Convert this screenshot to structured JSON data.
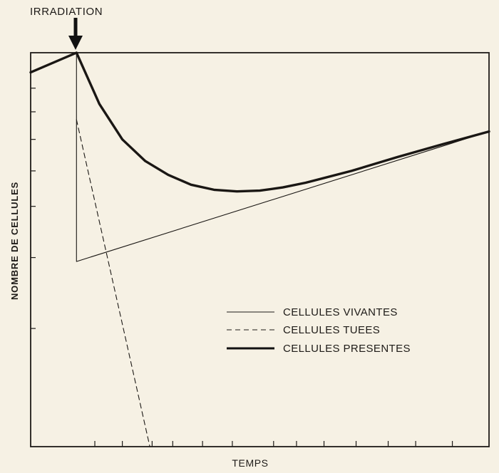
{
  "chart_data": {
    "type": "line",
    "title": "",
    "xlabel": "TEMPS",
    "ylabel": "NOMBRE DE CELLULES",
    "annotation": {
      "text": "IRRADIATION",
      "x": 1
    },
    "xlim": [
      0,
      10
    ],
    "ylim": [
      0,
      100
    ],
    "grid": false,
    "legend": "center-right",
    "series": [
      {
        "name": "CELLULES VIVANTES",
        "style": "thin-solid",
        "x": [
          0,
          1,
          1,
          10
        ],
        "y": [
          95,
          100,
          47,
          80
        ]
      },
      {
        "name": "CELLULES TUEES",
        "style": "dashed",
        "x": [
          1,
          2.6
        ],
        "y": [
          83,
          0
        ]
      },
      {
        "name": "CELLULES PRESENTES",
        "style": "thick-solid",
        "x": [
          0,
          1,
          1.5,
          2,
          2.5,
          3,
          3.5,
          4,
          4.5,
          5,
          5.5,
          6,
          7,
          8,
          9,
          10
        ],
        "y": [
          95,
          100,
          87,
          78,
          72.5,
          69,
          66.5,
          65.2,
          64.8,
          65,
          65.8,
          67,
          70,
          73.5,
          76.8,
          80
        ]
      }
    ]
  }
}
